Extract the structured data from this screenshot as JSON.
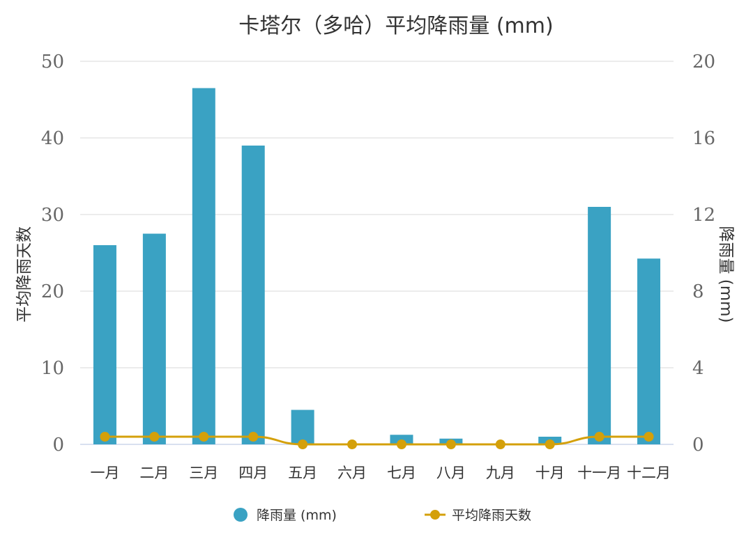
{
  "chart_data": {
    "type": "bar",
    "title": "卡塔尔（多哈）平均降雨量 (mm)",
    "categories": [
      "一月",
      "二月",
      "三月",
      "四月",
      "五月",
      "六月",
      "七月",
      "八月",
      "九月",
      "十月",
      "十一月",
      "十二月"
    ],
    "series": [
      {
        "name": "降雨量 (mm)",
        "type": "bar",
        "axis": "right",
        "color": "#3aa2c3",
        "values": [
          10.4,
          11.0,
          18.6,
          15.6,
          1.8,
          0.0,
          0.5,
          0.3,
          0.0,
          0.4,
          12.4,
          9.7
        ]
      },
      {
        "name": "平均降雨天数",
        "type": "line",
        "axis": "left",
        "color": "#d4a00a",
        "values": [
          1,
          1,
          1,
          1,
          0,
          0,
          0,
          0,
          0,
          0,
          1,
          1
        ]
      }
    ],
    "y_left": {
      "label": "平均降雨天数",
      "lim": [
        0,
        50
      ],
      "ticks": [
        0,
        10,
        20,
        30,
        40,
        50
      ]
    },
    "y_right": {
      "label": "降雨量 (mm)",
      "lim": [
        0,
        20
      ],
      "ticks": [
        0,
        4,
        8,
        12,
        16,
        20
      ]
    },
    "grid": true,
    "legend_position": "bottom-center"
  }
}
